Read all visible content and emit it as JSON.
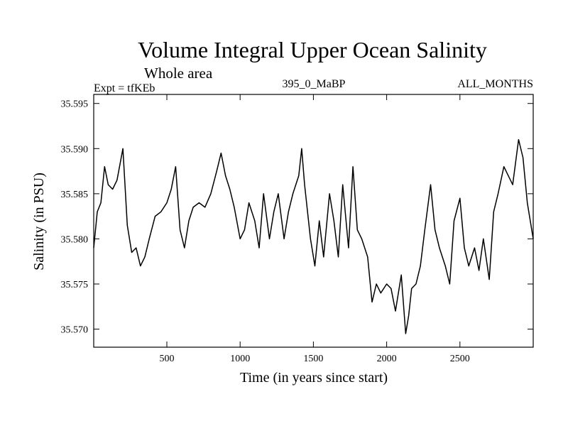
{
  "chart_data": {
    "type": "line",
    "title": "Volume Integral Upper Ocean Salinity",
    "subtitle": "Whole area",
    "annotations": {
      "experiment": "Expt = tfKEb",
      "run_label": "395_0_MaBP",
      "months": "ALL_MONTHS"
    },
    "xlabel": "Time (in years since start)",
    "ylabel": "Salinity (in PSU)",
    "xlim": [
      1,
      3000
    ],
    "ylim": [
      35.568,
      35.596
    ],
    "xticks": [
      500,
      1000,
      1500,
      2000,
      2500
    ],
    "yticks": [
      35.57,
      35.575,
      35.58,
      35.585,
      35.59,
      35.595
    ],
    "ytick_labels": [
      "35.570",
      "35.575",
      "35.580",
      "35.585",
      "35.590",
      "35.595"
    ],
    "grid": false,
    "series": [
      {
        "x": [
          1,
          25,
          50,
          75,
          100,
          130,
          160,
          200,
          230,
          260,
          290,
          320,
          350,
          380,
          420,
          460,
          500,
          530,
          560,
          590,
          620,
          650,
          680,
          720,
          760,
          800,
          840,
          870,
          900,
          930,
          960,
          1000,
          1030,
          1060,
          1100,
          1130,
          1160,
          1200,
          1230,
          1260,
          1300,
          1330,
          1360,
          1400,
          1420,
          1440,
          1480,
          1510,
          1540,
          1570,
          1610,
          1640,
          1670,
          1700,
          1740,
          1770,
          1800,
          1830,
          1870,
          1900,
          1930,
          1960,
          2000,
          2030,
          2060,
          2100,
          2130,
          2150,
          2170,
          2200,
          2230,
          2260,
          2300,
          2330,
          2360,
          2400,
          2430,
          2460,
          2500,
          2530,
          2560,
          2600,
          2630,
          2660,
          2700,
          2730,
          2760,
          2800,
          2830,
          2860,
          2900,
          2930,
          2960,
          3000
        ],
        "y": [
          35.579,
          35.583,
          35.584,
          35.588,
          35.586,
          35.5855,
          35.5865,
          35.59,
          35.5815,
          35.5785,
          35.579,
          35.577,
          35.578,
          35.58,
          35.5825,
          35.583,
          35.584,
          35.5855,
          35.588,
          35.581,
          35.579,
          35.582,
          35.5835,
          35.584,
          35.5835,
          35.585,
          35.5875,
          35.5895,
          35.587,
          35.5855,
          35.5835,
          35.58,
          35.581,
          35.584,
          35.582,
          35.579,
          35.585,
          35.58,
          35.583,
          35.585,
          35.58,
          35.583,
          35.585,
          35.587,
          35.59,
          35.586,
          35.58,
          35.577,
          35.582,
          35.578,
          35.585,
          35.582,
          35.578,
          35.586,
          35.579,
          35.588,
          35.581,
          35.58,
          35.578,
          35.573,
          35.575,
          35.574,
          35.575,
          35.5745,
          35.572,
          35.576,
          35.5695,
          35.5715,
          35.5745,
          35.575,
          35.577,
          35.581,
          35.586,
          35.581,
          35.579,
          35.577,
          35.575,
          35.582,
          35.5845,
          35.579,
          35.577,
          35.579,
          35.5765,
          35.58,
          35.5755,
          35.583,
          35.585,
          35.588,
          35.587,
          35.586,
          35.591,
          35.589,
          35.584,
          35.58
        ]
      }
    ]
  }
}
